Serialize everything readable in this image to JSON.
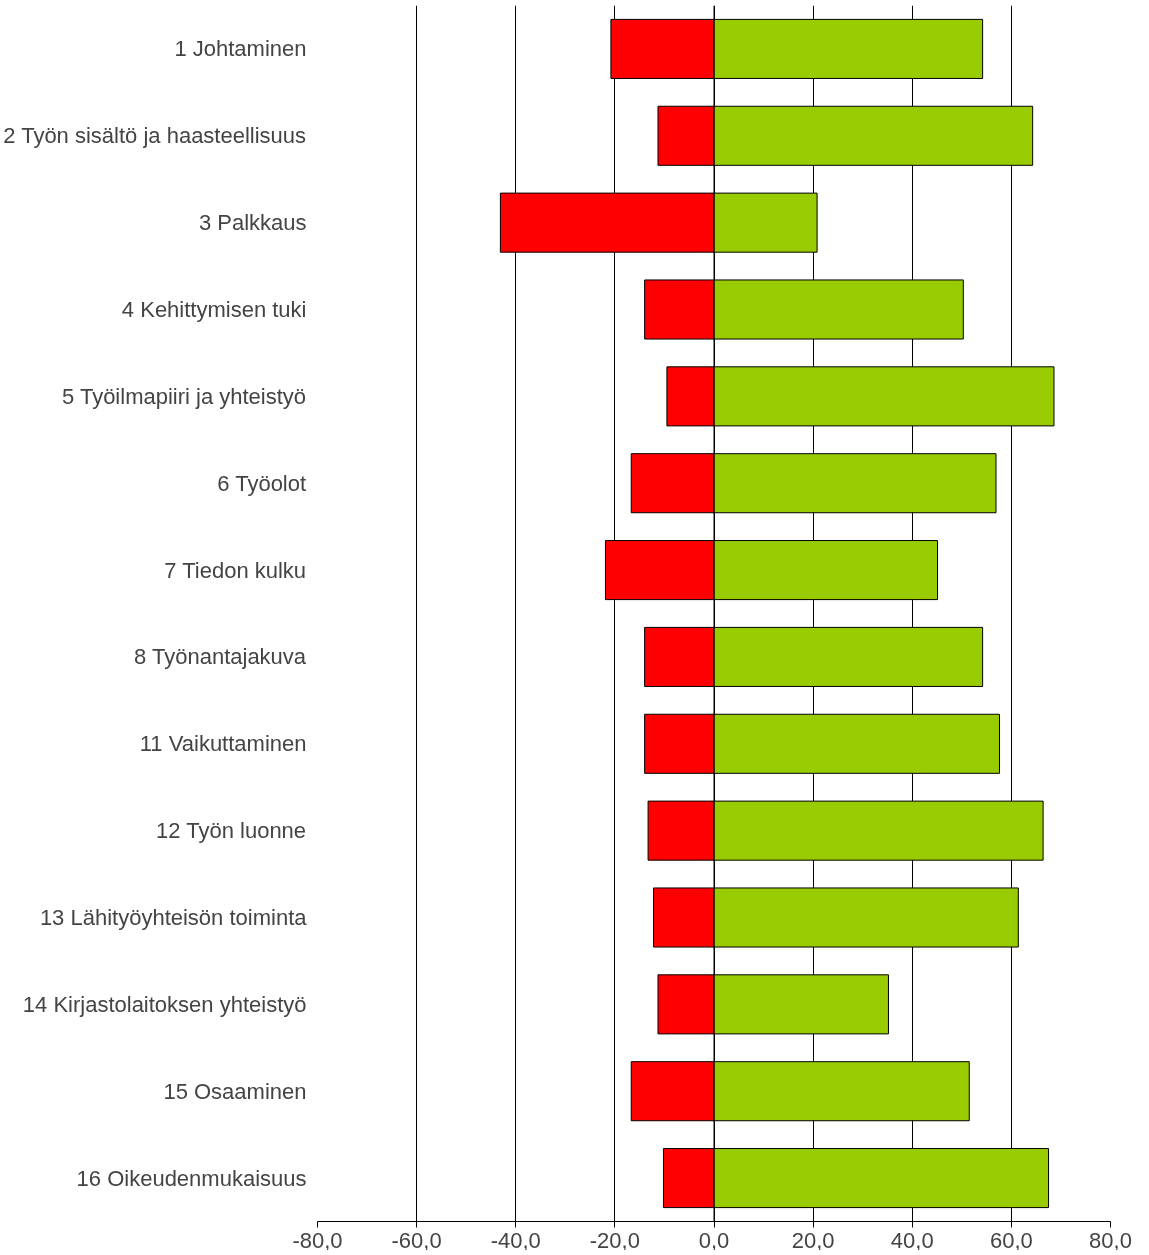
{
  "chart_data": {
    "type": "bar",
    "orientation": "horizontal",
    "stacked": true,
    "categories": [
      "1 Johtaminen",
      "2 Työn sisältö ja haasteellisuus",
      "3 Palkkaus",
      "4 Kehittymisen tuki",
      "5 Työilmapiiri ja yhteistyö",
      "6 Työolot",
      "7 Tiedon kulku",
      "8 Työnantajakuva",
      "11 Vaikuttaminen",
      "12 Työn luonne",
      "13 Lähityöyhteisön toiminta",
      "14 Kirjastolaitoksen yhteistyö",
      "15 Osaaminen",
      "16 Oikeudenmukaisuus"
    ],
    "series": [
      {
        "color": "#ff0000",
        "values": [
          -20.8,
          -11.3,
          -43.1,
          -14.0,
          -9.5,
          -16.7,
          -21.9,
          -14.0,
          -14.0,
          -13.3,
          -12.2,
          -11.3,
          -16.7,
          -10.2
        ]
      },
      {
        "color": "#99cc00",
        "values": [
          54.2,
          64.3,
          20.8,
          50.3,
          68.6,
          56.9,
          45.1,
          54.2,
          57.6,
          66.4,
          61.4,
          35.2,
          51.5,
          67.5
        ]
      }
    ],
    "xlim": [
      -80,
      80
    ],
    "xticks": [
      {
        "value": -80,
        "label": "-80,0"
      },
      {
        "value": -60,
        "label": "-60,0"
      },
      {
        "value": -40,
        "label": "-40,0"
      },
      {
        "value": -20,
        "label": "-20,0"
      },
      {
        "value": 0,
        "label": "0,0"
      },
      {
        "value": 20,
        "label": "20,0"
      },
      {
        "value": 40,
        "label": "40,0"
      },
      {
        "value": 60,
        "label": "60,0"
      },
      {
        "value": 80,
        "label": "80,0"
      }
    ],
    "grid": "x"
  }
}
